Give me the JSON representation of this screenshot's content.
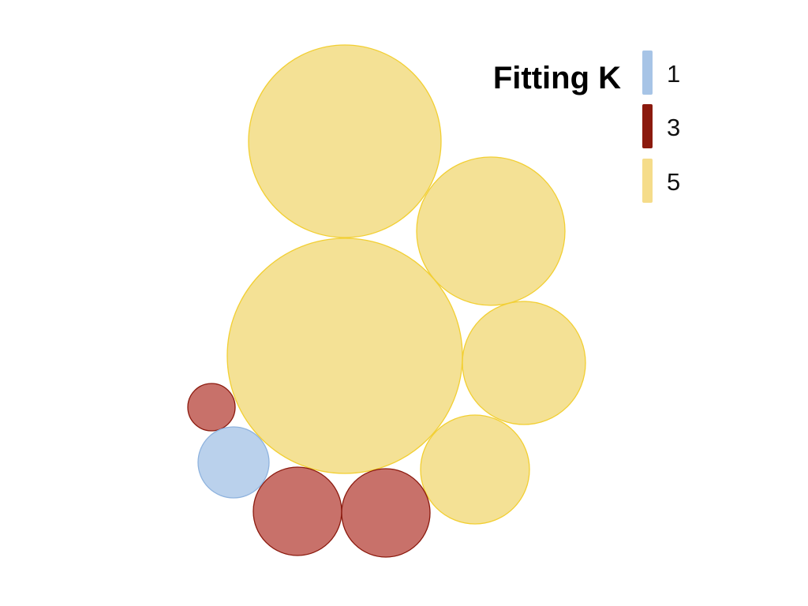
{
  "chart_data": {
    "type": "packed-bubble",
    "legend": {
      "title": "Fitting K",
      "placement": "top-right",
      "entries": [
        {
          "label": "1",
          "color": "#a7c4e6"
        },
        {
          "label": "3",
          "color": "#8b1a0e"
        },
        {
          "label": "5",
          "color": "#f5dc8a"
        }
      ]
    },
    "colors": {
      "1": {
        "fill": "#bad1ec",
        "stroke": "#8fb3de"
      },
      "3": {
        "fill": "#c8716a",
        "stroke": "#8b1a0e"
      },
      "5": {
        "fill": "#f4e195",
        "stroke": "#f2cf33"
      }
    },
    "bubbles": [
      {
        "group": "5",
        "size": 122
      },
      {
        "group": "5",
        "size": 149
      },
      {
        "group": "5",
        "size": 94
      },
      {
        "group": "5",
        "size": 78
      },
      {
        "group": "5",
        "size": 69
      },
      {
        "group": "3",
        "size": 30
      },
      {
        "group": "3",
        "size": 56
      },
      {
        "group": "3",
        "size": 56
      },
      {
        "group": "1",
        "size": 45
      }
    ]
  }
}
